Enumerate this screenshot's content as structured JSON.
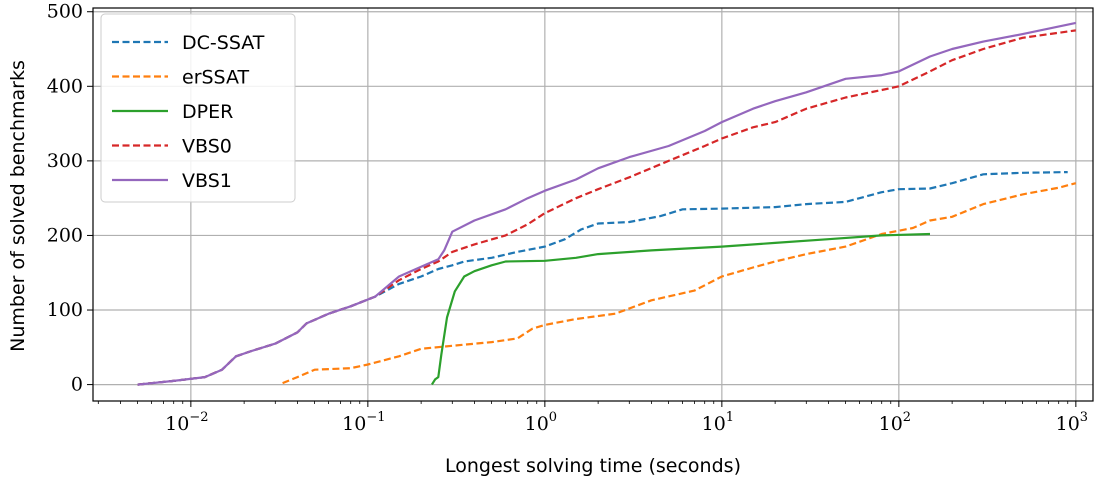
{
  "chart_data": {
    "type": "line",
    "title": "",
    "xlabel": "Longest solving time (seconds)",
    "ylabel": "Number of solved benchmarks",
    "xscale": "log",
    "xlim": [
      0.0028,
      1250
    ],
    "ylim": [
      -22,
      505
    ],
    "grid": true,
    "legend_position": "top-left",
    "x_ticks": [
      {
        "value": 0.01,
        "base": "10",
        "exp": "−2"
      },
      {
        "value": 0.1,
        "base": "10",
        "exp": "−1"
      },
      {
        "value": 1,
        "base": "10",
        "exp": "0"
      },
      {
        "value": 10,
        "base": "10",
        "exp": "1"
      },
      {
        "value": 100,
        "base": "10",
        "exp": "2"
      },
      {
        "value": 1000,
        "base": "10",
        "exp": "3"
      }
    ],
    "y_ticks": [
      0,
      100,
      200,
      300,
      400,
      500
    ],
    "series": [
      {
        "name": "DC-SSAT",
        "color": "#1f77b4",
        "dashed": true,
        "points": [
          [
            0.005,
            0
          ],
          [
            0.008,
            5
          ],
          [
            0.012,
            10
          ],
          [
            0.015,
            20
          ],
          [
            0.018,
            38
          ],
          [
            0.022,
            45
          ],
          [
            0.03,
            55
          ],
          [
            0.04,
            70
          ],
          [
            0.045,
            82
          ],
          [
            0.06,
            95
          ],
          [
            0.08,
            105
          ],
          [
            0.11,
            118
          ],
          [
            0.15,
            135
          ],
          [
            0.2,
            145
          ],
          [
            0.25,
            155
          ],
          [
            0.3,
            160
          ],
          [
            0.35,
            165
          ],
          [
            0.5,
            170
          ],
          [
            0.7,
            178
          ],
          [
            1.0,
            185
          ],
          [
            1.3,
            195
          ],
          [
            1.6,
            208
          ],
          [
            2.0,
            216
          ],
          [
            3.0,
            218
          ],
          [
            4.5,
            226
          ],
          [
            6.0,
            235
          ],
          [
            10,
            236
          ],
          [
            20,
            238
          ],
          [
            30,
            242
          ],
          [
            50,
            245
          ],
          [
            80,
            258
          ],
          [
            100,
            262
          ],
          [
            150,
            263
          ],
          [
            200,
            270
          ],
          [
            300,
            282
          ],
          [
            500,
            284
          ],
          [
            900,
            285
          ]
        ]
      },
      {
        "name": "erSSAT",
        "color": "#ff7f0e",
        "dashed": true,
        "points": [
          [
            0.033,
            2
          ],
          [
            0.04,
            10
          ],
          [
            0.05,
            20
          ],
          [
            0.08,
            22
          ],
          [
            0.1,
            27
          ],
          [
            0.15,
            38
          ],
          [
            0.2,
            48
          ],
          [
            0.3,
            52
          ],
          [
            0.5,
            57
          ],
          [
            0.7,
            62
          ],
          [
            0.85,
            75
          ],
          [
            1.0,
            80
          ],
          [
            1.5,
            88
          ],
          [
            2.5,
            95
          ],
          [
            4,
            113
          ],
          [
            7,
            126
          ],
          [
            10,
            145
          ],
          [
            15,
            157
          ],
          [
            20,
            165
          ],
          [
            30,
            175
          ],
          [
            50,
            185
          ],
          [
            80,
            202
          ],
          [
            120,
            210
          ],
          [
            150,
            220
          ],
          [
            200,
            225
          ],
          [
            300,
            242
          ],
          [
            500,
            255
          ],
          [
            800,
            264
          ],
          [
            1000,
            270
          ]
        ]
      },
      {
        "name": "DPER",
        "color": "#2ca02c",
        "dashed": false,
        "points": [
          [
            0.23,
            0
          ],
          [
            0.24,
            7
          ],
          [
            0.25,
            10
          ],
          [
            0.26,
            40
          ],
          [
            0.28,
            90
          ],
          [
            0.31,
            125
          ],
          [
            0.35,
            145
          ],
          [
            0.4,
            152
          ],
          [
            0.5,
            160
          ],
          [
            0.6,
            165
          ],
          [
            1.0,
            166
          ],
          [
            1.5,
            170
          ],
          [
            2.0,
            175
          ],
          [
            4.0,
            180
          ],
          [
            10,
            185
          ],
          [
            20,
            190
          ],
          [
            40,
            195
          ],
          [
            80,
            200
          ],
          [
            150,
            202
          ]
        ]
      },
      {
        "name": "VBS0",
        "color": "#d62728",
        "dashed": true,
        "points": [
          [
            0.005,
            0
          ],
          [
            0.008,
            5
          ],
          [
            0.012,
            10
          ],
          [
            0.015,
            20
          ],
          [
            0.018,
            38
          ],
          [
            0.022,
            45
          ],
          [
            0.03,
            55
          ],
          [
            0.04,
            70
          ],
          [
            0.045,
            82
          ],
          [
            0.06,
            95
          ],
          [
            0.08,
            105
          ],
          [
            0.11,
            118
          ],
          [
            0.15,
            140
          ],
          [
            0.2,
            155
          ],
          [
            0.25,
            165
          ],
          [
            0.3,
            178
          ],
          [
            0.4,
            188
          ],
          [
            0.6,
            200
          ],
          [
            0.8,
            215
          ],
          [
            1.0,
            230
          ],
          [
            1.5,
            250
          ],
          [
            2.0,
            262
          ],
          [
            3.0,
            278
          ],
          [
            5.0,
            300
          ],
          [
            8.0,
            320
          ],
          [
            10,
            330
          ],
          [
            15,
            345
          ],
          [
            20,
            352
          ],
          [
            30,
            370
          ],
          [
            50,
            385
          ],
          [
            80,
            395
          ],
          [
            100,
            400
          ],
          [
            150,
            420
          ],
          [
            200,
            435
          ],
          [
            300,
            450
          ],
          [
            500,
            465
          ],
          [
            1000,
            475
          ]
        ]
      },
      {
        "name": "VBS1",
        "color": "#9467bd",
        "dashed": false,
        "points": [
          [
            0.005,
            0
          ],
          [
            0.008,
            5
          ],
          [
            0.012,
            10
          ],
          [
            0.015,
            20
          ],
          [
            0.018,
            38
          ],
          [
            0.022,
            45
          ],
          [
            0.03,
            55
          ],
          [
            0.04,
            70
          ],
          [
            0.045,
            82
          ],
          [
            0.06,
            95
          ],
          [
            0.08,
            105
          ],
          [
            0.11,
            118
          ],
          [
            0.15,
            145
          ],
          [
            0.2,
            158
          ],
          [
            0.25,
            168
          ],
          [
            0.27,
            180
          ],
          [
            0.3,
            205
          ],
          [
            0.4,
            220
          ],
          [
            0.6,
            235
          ],
          [
            0.8,
            250
          ],
          [
            1.0,
            260
          ],
          [
            1.5,
            275
          ],
          [
            2.0,
            290
          ],
          [
            3.0,
            305
          ],
          [
            5.0,
            320
          ],
          [
            8.0,
            340
          ],
          [
            10,
            352
          ],
          [
            15,
            370
          ],
          [
            20,
            380
          ],
          [
            30,
            392
          ],
          [
            50,
            410
          ],
          [
            80,
            415
          ],
          [
            100,
            420
          ],
          [
            150,
            440
          ],
          [
            200,
            450
          ],
          [
            300,
            460
          ],
          [
            500,
            470
          ],
          [
            1000,
            485
          ]
        ]
      }
    ]
  }
}
